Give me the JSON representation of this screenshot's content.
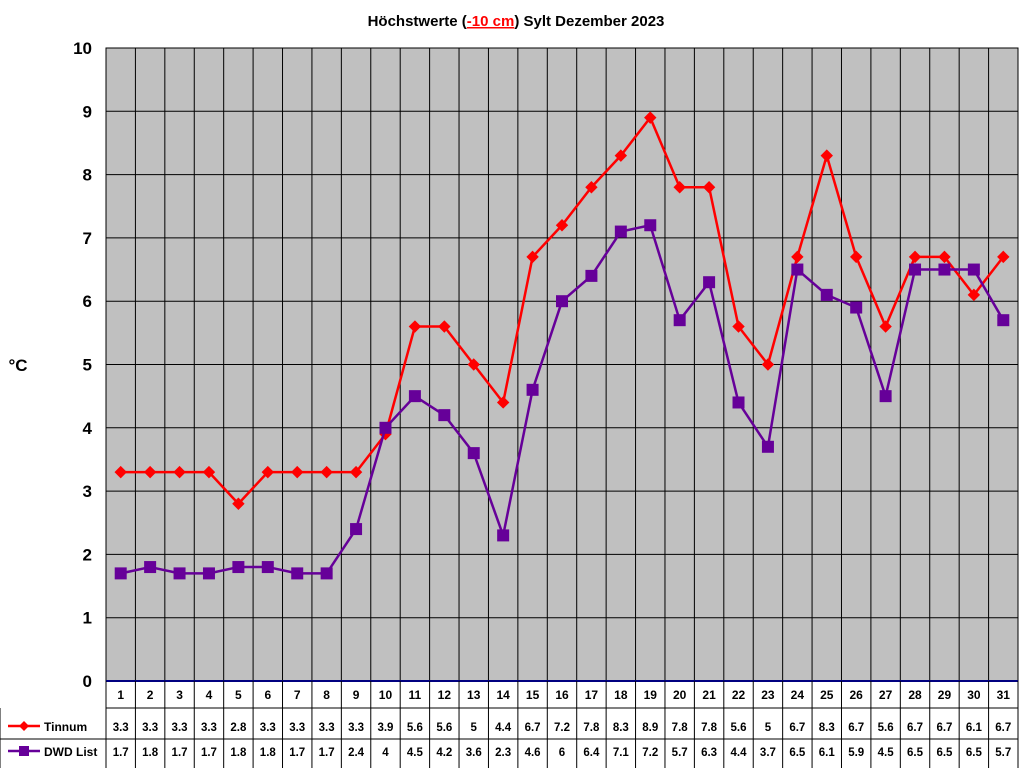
{
  "chart_data": {
    "type": "line",
    "title_parts": {
      "before": "Höchstwerte (",
      "emph": "-10 cm",
      "after": ") Sylt Dezember 2023"
    },
    "ylabel": "°C",
    "xlabel": "",
    "ylim": [
      0,
      10
    ],
    "yticks": [
      0,
      1,
      2,
      3,
      4,
      5,
      6,
      7,
      8,
      9,
      10
    ],
    "grid": true,
    "legend_placement": "data-table-left",
    "categories": [
      "1",
      "2",
      "3",
      "4",
      "5",
      "6",
      "7",
      "8",
      "9",
      "10",
      "11",
      "12",
      "13",
      "14",
      "15",
      "16",
      "17",
      "18",
      "19",
      "20",
      "21",
      "22",
      "23",
      "24",
      "25",
      "26",
      "27",
      "28",
      "29",
      "30",
      "31"
    ],
    "series": [
      {
        "name": "Tinnum",
        "color": "#ff0000",
        "marker": "diamond",
        "values": [
          3.3,
          3.3,
          3.3,
          3.3,
          2.8,
          3.3,
          3.3,
          3.3,
          3.3,
          3.9,
          5.6,
          5.6,
          5,
          4.4,
          6.7,
          7.2,
          7.8,
          8.3,
          8.9,
          7.8,
          7.8,
          5.6,
          5,
          6.7,
          8.3,
          6.7,
          5.6,
          6.7,
          6.7,
          6.1,
          6.7
        ]
      },
      {
        "name": "DWD List",
        "color": "#660099",
        "marker": "square",
        "values": [
          1.7,
          1.8,
          1.7,
          1.7,
          1.8,
          1.8,
          1.7,
          1.7,
          2.4,
          4,
          4.5,
          4.2,
          3.6,
          2.3,
          4.6,
          6,
          6.4,
          7.1,
          7.2,
          5.7,
          6.3,
          4.4,
          3.7,
          6.5,
          6.1,
          5.9,
          4.5,
          6.5,
          6.5,
          6.5,
          5.7
        ]
      }
    ],
    "plot_background": "#c0c0c0",
    "axis_color": "#000080"
  }
}
